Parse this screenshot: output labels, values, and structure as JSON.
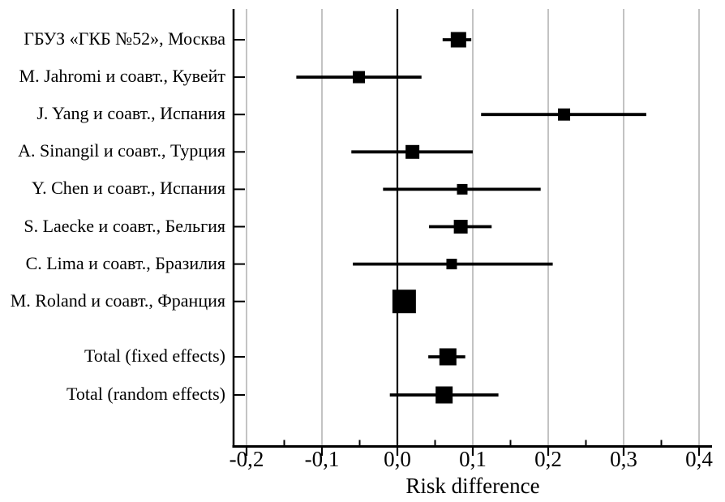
{
  "chart_data": {
    "type": "scatter",
    "subtype": "forest_plot",
    "title": "",
    "xlabel": "Risk difference",
    "ylabel": "",
    "xlim": [
      -0.217,
      0.418
    ],
    "grid": "vertical gridlines at major x ticks",
    "legend": "none",
    "zero_reference_line": 0.0,
    "decimal_separator": ",",
    "colors": {
      "marker": "#000000",
      "axis": "#000000",
      "gridline": "#c3c3c3",
      "background": "#ffffff"
    },
    "x_axis": {
      "ticks": [
        -0.2,
        -0.1,
        0.0,
        0.1,
        0.2,
        0.3,
        0.4
      ],
      "tick_labels": [
        "-0,2",
        "-0,1",
        "0,0",
        "0,1",
        "0,2",
        "0,3",
        "0,4"
      ],
      "minor_ticks": [
        -0.15,
        -0.05,
        0.05,
        0.15,
        0.25,
        0.35
      ]
    },
    "studies": [
      {
        "label": "ГБУЗ «ГКБ №52», Москва",
        "estimate": 0.081,
        "ci_low": 0.06,
        "ci_high": 0.098,
        "marker_size_px": 19
      },
      {
        "label": "M. Jahromi и соавт., Кувейт",
        "estimate": -0.051,
        "ci_low": -0.134,
        "ci_high": 0.032,
        "marker_size_px": 15
      },
      {
        "label": "J. Yang и соавт., Испания",
        "estimate": 0.221,
        "ci_low": 0.111,
        "ci_high": 0.33,
        "marker_size_px": 15
      },
      {
        "label": "A. Sinangil и соавт., Турция",
        "estimate": 0.02,
        "ci_low": -0.061,
        "ci_high": 0.1,
        "marker_size_px": 17
      },
      {
        "label": "Y. Chen и соавт., Испания",
        "estimate": 0.086,
        "ci_low": -0.019,
        "ci_high": 0.19,
        "marker_size_px": 13
      },
      {
        "label": "S. Laecke и соавт., Бельгия",
        "estimate": 0.084,
        "ci_low": 0.042,
        "ci_high": 0.125,
        "marker_size_px": 17
      },
      {
        "label": "C. Lima и соавт., Бразилия",
        "estimate": 0.072,
        "ci_low": -0.059,
        "ci_high": 0.206,
        "marker_size_px": 13
      },
      {
        "label": "M. Roland и соавт., Франция",
        "estimate": 0.009,
        "ci_low": null,
        "ci_high": null,
        "marker_size_px": 29
      }
    ],
    "totals": [
      {
        "label": "Total (fixed effects)",
        "estimate": 0.067,
        "ci_low": 0.041,
        "ci_high": 0.09,
        "marker_size_px": 21
      },
      {
        "label": "Total (random effects)",
        "estimate": 0.062,
        "ci_low": -0.01,
        "ci_high": 0.134,
        "marker_size_px": 21
      }
    ]
  }
}
